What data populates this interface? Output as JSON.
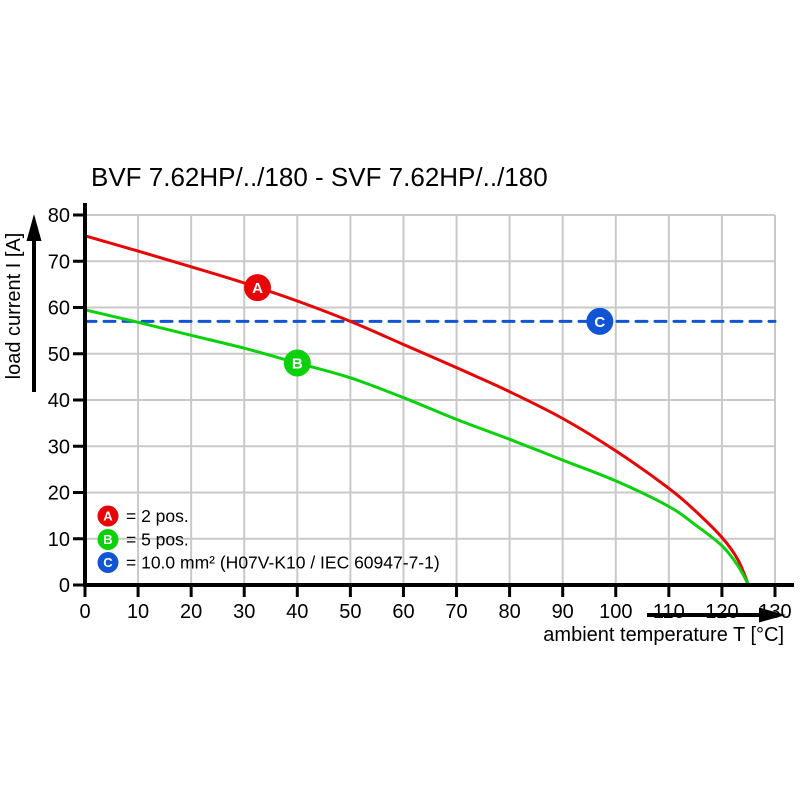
{
  "page": {
    "background": "#ffffff"
  },
  "colors": {
    "red": "#e80505",
    "green": "#0ad10a",
    "blue": "#1155d4",
    "grid": "#c9c9c9",
    "axis": "#000000"
  },
  "chart_data": {
    "type": "line",
    "title": "BVF 7.62HP/../180 - SVF 7.62HP/../180",
    "xlabel": "ambient temperature T [°C]",
    "ylabel": "load current I [A]",
    "xlim": [
      0,
      130
    ],
    "ylim": [
      0,
      80
    ],
    "xticks": [
      0,
      10,
      20,
      30,
      40,
      50,
      60,
      70,
      80,
      90,
      100,
      110,
      120,
      130
    ],
    "yticks": [
      0,
      10,
      20,
      30,
      40,
      50,
      60,
      70,
      80
    ],
    "grid": true,
    "legend_position": "bottom-left-inside",
    "series": [
      {
        "name": "A = 2 pos.",
        "color": "#e80505",
        "style": "solid",
        "points": [
          [
            0,
            75.5
          ],
          [
            10,
            72.2
          ],
          [
            20,
            68.8
          ],
          [
            30,
            65.3
          ],
          [
            40,
            61.4
          ],
          [
            50,
            57
          ],
          [
            60,
            52
          ],
          [
            70,
            47
          ],
          [
            80,
            41.8
          ],
          [
            90,
            36
          ],
          [
            100,
            29
          ],
          [
            110,
            20.9
          ],
          [
            115,
            16
          ],
          [
            120,
            10.3
          ],
          [
            123,
            5.5
          ],
          [
            125,
            0
          ]
        ]
      },
      {
        "name": "B = 5 pos.",
        "color": "#0ad10a",
        "style": "solid",
        "points": [
          [
            0,
            59.5
          ],
          [
            10,
            56.8
          ],
          [
            20,
            54
          ],
          [
            30,
            51.2
          ],
          [
            40,
            48
          ],
          [
            50,
            44.8
          ],
          [
            60,
            40.5
          ],
          [
            70,
            35.8
          ],
          [
            80,
            31.5
          ],
          [
            90,
            27
          ],
          [
            100,
            22.5
          ],
          [
            110,
            17
          ],
          [
            115,
            13
          ],
          [
            120,
            8.5
          ],
          [
            123,
            4.2
          ],
          [
            125,
            0
          ]
        ]
      },
      {
        "name": "C = 10.0 mm² (H07V-K10 / IEC 60947-7-1)",
        "color": "#1155d4",
        "style": "dashed",
        "points": [
          [
            0,
            57
          ],
          [
            130,
            57
          ]
        ]
      }
    ],
    "markers": [
      {
        "label": "A",
        "x": 32.5,
        "y": 64.3,
        "color": "#e80505"
      },
      {
        "label": "B",
        "x": 40,
        "y": 48,
        "color": "#0ad10a"
      },
      {
        "label": "C",
        "x": 97,
        "y": 57,
        "color": "#1155d4"
      }
    ],
    "legend": [
      {
        "label": "A",
        "color": "#e80505",
        "text": "= 2 pos."
      },
      {
        "label": "B",
        "color": "#0ad10a",
        "text": "= 5 pos."
      },
      {
        "label": "C",
        "color": "#1155d4",
        "text": "= 10.0 mm² (H07V-K10 / IEC 60947-7-1)"
      }
    ]
  }
}
